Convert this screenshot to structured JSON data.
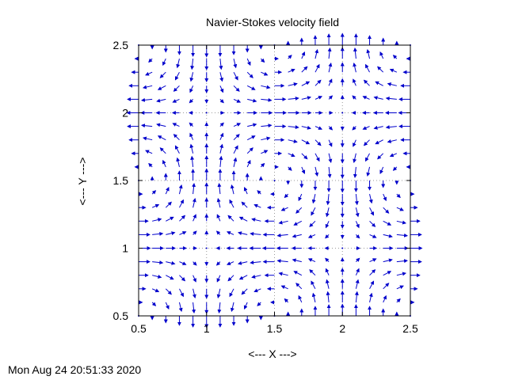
{
  "chart_data": {
    "type": "vector_field",
    "title": "Navier-Stokes velocity field",
    "xlabel": "<--- X --->",
    "ylabel": "<--- Y --->",
    "xlim": [
      0.5,
      2.5
    ],
    "ylim": [
      0.5,
      2.5
    ],
    "x_ticks": [
      0.5,
      1,
      1.5,
      2,
      2.5
    ],
    "x_tick_labels": [
      "0.5",
      "1",
      "1.5",
      "2",
      "2.5"
    ],
    "y_ticks": [
      0.5,
      1,
      1.5,
      2,
      2.5
    ],
    "y_tick_labels": [
      "0.5",
      "1",
      "1.5",
      "2",
      "2.5"
    ],
    "grid": true,
    "grid_style": "dotted",
    "arrow_color": "#0000cc",
    "field": {
      "u": "-sin(pi*x)*cos(pi*y)",
      "v": "cos(pi*x)*sin(pi*y)",
      "x_start": 0.5,
      "x_end": 2.5,
      "x_count": 21,
      "y_start": 0.5,
      "y_end": 2.5,
      "y_count": 21
    }
  },
  "footer": {
    "timestamp": "Mon Aug 24 20:51:33 2020"
  }
}
